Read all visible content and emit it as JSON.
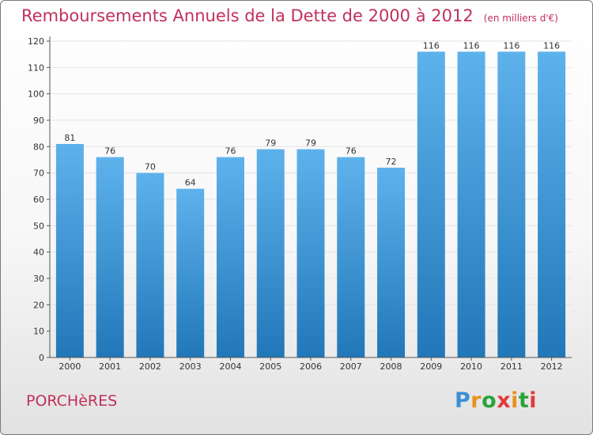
{
  "header": {
    "title": "Remboursements Annuels de la Dette de 2000 à 2012",
    "subtitle": "(en milliers d'€)"
  },
  "footer": {
    "town": "PORCHèRES",
    "logo_text": "Proxiti"
  },
  "colors": {
    "title": "#c1305a",
    "bar_top": "#5eb2ec",
    "bar_bottom": "#2177b8",
    "grid": "#e4e4e4",
    "axis": "#555555"
  },
  "chart_data": {
    "type": "bar",
    "categories": [
      "2000",
      "2001",
      "2002",
      "2003",
      "2004",
      "2005",
      "2006",
      "2007",
      "2008",
      "2009",
      "2010",
      "2011",
      "2012"
    ],
    "values": [
      81,
      76,
      70,
      64,
      76,
      79,
      79,
      76,
      72,
      116,
      116,
      116,
      116
    ],
    "ylim": [
      0,
      120
    ],
    "yticks": [
      0,
      10,
      20,
      30,
      40,
      50,
      60,
      70,
      80,
      90,
      100,
      110,
      120
    ],
    "grid": true,
    "data_labels": true
  }
}
